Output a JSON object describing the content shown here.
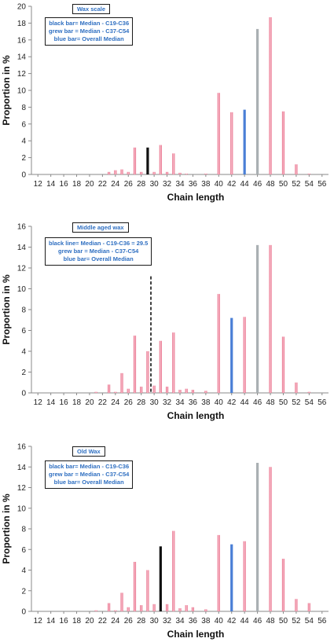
{
  "chart_data": [
    {
      "type": "bar",
      "title": "Wax scale",
      "legend": [
        "black bar= Median - C19-C36",
        "grew bar = Median - C37-C54",
        "blue bar= Overall Median"
      ],
      "xlabel": "Chain length",
      "ylabel": "Proportion in %",
      "ylim": [
        0,
        20
      ],
      "yticks": [
        0,
        2,
        4,
        6,
        8,
        10,
        12,
        14,
        16,
        18,
        20
      ],
      "xticks": [
        12,
        14,
        16,
        18,
        20,
        22,
        24,
        26,
        28,
        30,
        32,
        34,
        36,
        38,
        40,
        42,
        44,
        46,
        48,
        50,
        52,
        54,
        56
      ],
      "bars": [
        {
          "x": 23,
          "value": 0.3,
          "color": "pink"
        },
        {
          "x": 24,
          "value": 0.5,
          "color": "pink"
        },
        {
          "x": 25,
          "value": 0.6,
          "color": "pink"
        },
        {
          "x": 26,
          "value": 0.3,
          "color": "pink"
        },
        {
          "x": 27,
          "value": 3.2,
          "color": "pink"
        },
        {
          "x": 28,
          "value": 0.3,
          "color": "pink"
        },
        {
          "x": 29,
          "value": 3.2,
          "color": "black"
        },
        {
          "x": 30,
          "value": 0.3,
          "color": "pink"
        },
        {
          "x": 31,
          "value": 3.5,
          "color": "pink"
        },
        {
          "x": 32,
          "value": 0.3,
          "color": "pink"
        },
        {
          "x": 33,
          "value": 2.5,
          "color": "pink"
        },
        {
          "x": 34,
          "value": 0.2,
          "color": "pink"
        },
        {
          "x": 35,
          "value": 0.1,
          "color": "pink"
        },
        {
          "x": 38,
          "value": 0.1,
          "color": "pink"
        },
        {
          "x": 40,
          "value": 9.7,
          "color": "pink"
        },
        {
          "x": 42,
          "value": 7.4,
          "color": "pink"
        },
        {
          "x": 44,
          "value": 7.7,
          "color": "blue"
        },
        {
          "x": 46,
          "value": 17.3,
          "color": "grey"
        },
        {
          "x": 48,
          "value": 18.7,
          "color": "pink"
        },
        {
          "x": 50,
          "value": 7.5,
          "color": "pink"
        },
        {
          "x": 52,
          "value": 1.2,
          "color": "pink"
        },
        {
          "x": 54,
          "value": 0.1,
          "color": "pink"
        }
      ]
    },
    {
      "type": "bar",
      "title": "Middle aged wax",
      "legend": [
        "black line= Median - C19-C36 = 29.5",
        "grew bar = Median - C37-C54",
        "blue bar= Overall Median"
      ],
      "xlabel": "Chain length",
      "ylabel": "Proportion in %",
      "ylim": [
        0,
        16
      ],
      "yticks": [
        0,
        2,
        4,
        6,
        8,
        10,
        12,
        14,
        16
      ],
      "xticks": [
        12,
        14,
        16,
        18,
        20,
        22,
        24,
        26,
        28,
        30,
        32,
        34,
        36,
        38,
        40,
        42,
        44,
        46,
        48,
        50,
        52,
        54,
        56
      ],
      "median_line": {
        "x": 29.5,
        "top": 11.2
      },
      "bars": [
        {
          "x": 21,
          "value": 0.1,
          "color": "pink"
        },
        {
          "x": 23,
          "value": 0.8,
          "color": "pink"
        },
        {
          "x": 24,
          "value": 0.1,
          "color": "pink"
        },
        {
          "x": 25,
          "value": 1.9,
          "color": "pink"
        },
        {
          "x": 26,
          "value": 0.4,
          "color": "pink"
        },
        {
          "x": 27,
          "value": 5.5,
          "color": "pink"
        },
        {
          "x": 28,
          "value": 0.6,
          "color": "pink"
        },
        {
          "x": 29,
          "value": 4.0,
          "color": "pink"
        },
        {
          "x": 30,
          "value": 0.7,
          "color": "pink"
        },
        {
          "x": 31,
          "value": 5.0,
          "color": "pink"
        },
        {
          "x": 32,
          "value": 0.6,
          "color": "pink"
        },
        {
          "x": 33,
          "value": 5.8,
          "color": "pink"
        },
        {
          "x": 34,
          "value": 0.3,
          "color": "pink"
        },
        {
          "x": 35,
          "value": 0.4,
          "color": "pink"
        },
        {
          "x": 36,
          "value": 0.3,
          "color": "pink"
        },
        {
          "x": 38,
          "value": 0.2,
          "color": "pink"
        },
        {
          "x": 40,
          "value": 9.5,
          "color": "pink"
        },
        {
          "x": 42,
          "value": 7.2,
          "color": "blue"
        },
        {
          "x": 44,
          "value": 7.3,
          "color": "pink"
        },
        {
          "x": 46,
          "value": 14.2,
          "color": "grey"
        },
        {
          "x": 48,
          "value": 14.2,
          "color": "pink"
        },
        {
          "x": 50,
          "value": 5.4,
          "color": "pink"
        },
        {
          "x": 52,
          "value": 1.0,
          "color": "pink"
        },
        {
          "x": 54,
          "value": 0.1,
          "color": "pink"
        }
      ]
    },
    {
      "type": "bar",
      "title": "Old Wax",
      "legend": [
        "black bar= Median - C19-C36",
        "grew bar = Median - C37-C54",
        "blue bar= Overall Median"
      ],
      "xlabel": "Chain length",
      "ylabel": "Proportion in %",
      "ylim": [
        0,
        16
      ],
      "yticks": [
        0,
        2,
        4,
        6,
        8,
        10,
        12,
        14,
        16
      ],
      "xticks": [
        12,
        14,
        16,
        18,
        20,
        22,
        24,
        26,
        28,
        30,
        32,
        34,
        36,
        38,
        40,
        42,
        44,
        46,
        48,
        50,
        52,
        54,
        56
      ],
      "bars": [
        {
          "x": 21,
          "value": 0.1,
          "color": "pink"
        },
        {
          "x": 23,
          "value": 0.8,
          "color": "pink"
        },
        {
          "x": 24,
          "value": 0.1,
          "color": "pink"
        },
        {
          "x": 25,
          "value": 1.8,
          "color": "pink"
        },
        {
          "x": 26,
          "value": 0.4,
          "color": "pink"
        },
        {
          "x": 27,
          "value": 4.8,
          "color": "pink"
        },
        {
          "x": 28,
          "value": 0.6,
          "color": "pink"
        },
        {
          "x": 29,
          "value": 4.0,
          "color": "pink"
        },
        {
          "x": 30,
          "value": 0.7,
          "color": "pink"
        },
        {
          "x": 31,
          "value": 6.3,
          "color": "black"
        },
        {
          "x": 32,
          "value": 0.7,
          "color": "pink"
        },
        {
          "x": 33,
          "value": 7.8,
          "color": "pink"
        },
        {
          "x": 34,
          "value": 0.3,
          "color": "pink"
        },
        {
          "x": 35,
          "value": 0.6,
          "color": "pink"
        },
        {
          "x": 36,
          "value": 0.4,
          "color": "pink"
        },
        {
          "x": 38,
          "value": 0.2,
          "color": "pink"
        },
        {
          "x": 40,
          "value": 7.4,
          "color": "pink"
        },
        {
          "x": 42,
          "value": 6.5,
          "color": "blue"
        },
        {
          "x": 44,
          "value": 6.8,
          "color": "pink"
        },
        {
          "x": 46,
          "value": 14.4,
          "color": "grey"
        },
        {
          "x": 48,
          "value": 14.0,
          "color": "pink"
        },
        {
          "x": 50,
          "value": 5.1,
          "color": "pink"
        },
        {
          "x": 52,
          "value": 1.2,
          "color": "pink"
        },
        {
          "x": 54,
          "value": 0.8,
          "color": "pink"
        }
      ]
    }
  ],
  "colors": {
    "pink": "#e8607f",
    "pink_light": "#f7c5d0",
    "black": "#111111",
    "blue": "#4a7fd6",
    "grey": "#aab0b3",
    "legend_text": "#2f6fc1",
    "axis": "#8a8a8a"
  }
}
